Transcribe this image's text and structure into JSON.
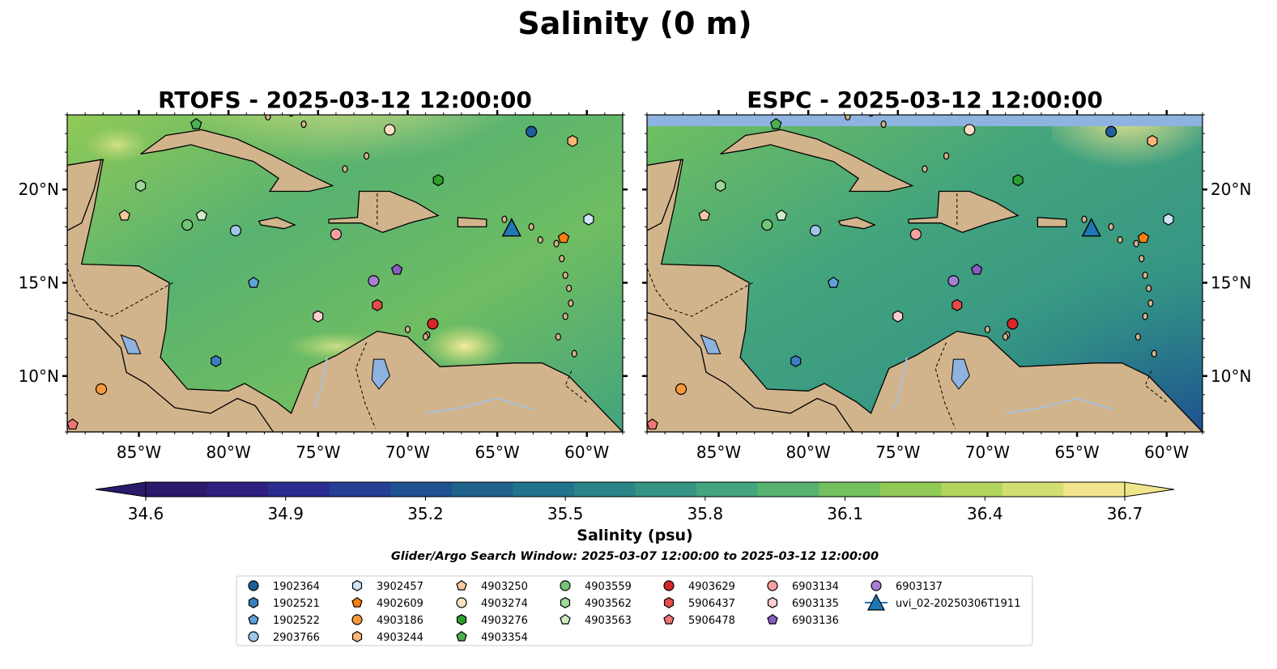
{
  "figure": {
    "title": "Salinity (0 m)",
    "search_window": "Glider/Argo Search Window: 2025-03-07 12:00:00 to 2025-03-12 12:00:00"
  },
  "chart_data": {
    "type": "heatmap",
    "panels": [
      {
        "title": "RTOFS - 2025-03-12 12:00:00",
        "ylabels_side": "left"
      },
      {
        "title": "ESPC - 2025-03-12 12:00:00",
        "ylabels_side": "right"
      }
    ],
    "xlim": [
      -89,
      -58
    ],
    "ylim": [
      7,
      24
    ],
    "xticks": [
      -85,
      -80,
      -75,
      -70,
      -65,
      -60
    ],
    "xtick_labels": [
      "85°W",
      "80°W",
      "75°W",
      "70°W",
      "65°W",
      "60°W"
    ],
    "yticks": [
      10,
      15,
      20
    ],
    "ytick_labels": [
      "10°N",
      "15°N",
      "20°N"
    ],
    "colorbar": {
      "label": "Salinity (psu)",
      "min": 34.6,
      "max": 36.7,
      "ticks": [
        34.6,
        34.9,
        35.2,
        35.5,
        35.8,
        36.1,
        36.4,
        36.7
      ],
      "tick_labels": [
        "34.6",
        "34.9",
        "35.2",
        "35.5",
        "35.8",
        "36.1",
        "36.4",
        "36.7"
      ],
      "extend": "both",
      "colors": [
        "#2b1a6b",
        "#2e1f80",
        "#2a2c8f",
        "#243f94",
        "#1f5190",
        "#1f638d",
        "#22738b",
        "#2a8488",
        "#359585",
        "#43a47d",
        "#58b270",
        "#72c05f",
        "#91ca57",
        "#b3d45d",
        "#d3de72",
        "#f0e58c"
      ]
    },
    "land_color": "#d2b48c",
    "lake_color": "#8fb3e0",
    "river_color": "#a9c0d8",
    "glider": {
      "name": "uvi_02-20250306T1911",
      "lon": -64.2,
      "lat": 17.9,
      "color": "#1f77b4",
      "marker": "triangle"
    },
    "floats": [
      {
        "id": "1902364",
        "lon": -63.1,
        "lat": 23.1,
        "color": "#1f5e9a",
        "marker": "circle"
      },
      {
        "id": "1902521",
        "lon": -80.7,
        "lat": 10.8,
        "color": "#3a7fc0",
        "marker": "hexagon"
      },
      {
        "id": "1902522",
        "lon": -78.6,
        "lat": 15.0,
        "color": "#5fa2d8",
        "marker": "pentagon"
      },
      {
        "id": "2903766",
        "lon": -79.6,
        "lat": 17.8,
        "color": "#9fc6e8",
        "marker": "circle"
      },
      {
        "id": "3902457",
        "lon": -59.9,
        "lat": 18.4,
        "color": "#cfe4f5",
        "marker": "hexagon"
      },
      {
        "id": "4902609",
        "lon": -61.3,
        "lat": 17.4,
        "color": "#ff7f0e",
        "marker": "pentagon"
      },
      {
        "id": "4903186",
        "lon": -87.1,
        "lat": 9.3,
        "color": "#f79a3c",
        "marker": "circle"
      },
      {
        "id": "4903244",
        "lon": -60.8,
        "lat": 22.6,
        "color": "#fbb677",
        "marker": "hexagon"
      },
      {
        "id": "4903250",
        "lon": -85.8,
        "lat": 18.6,
        "color": "#f7c9a0",
        "marker": "pentagon"
      },
      {
        "id": "4903274",
        "lon": -71.0,
        "lat": 23.2,
        "color": "#fde0c4",
        "marker": "circle"
      },
      {
        "id": "4903276",
        "lon": -68.3,
        "lat": 20.5,
        "color": "#2ca02c",
        "marker": "hexagon"
      },
      {
        "id": "4903354",
        "lon": -81.8,
        "lat": 23.5,
        "color": "#4caf50",
        "marker": "pentagon"
      },
      {
        "id": "4903559",
        "lon": -82.3,
        "lat": 18.1,
        "color": "#73c476",
        "marker": "circle"
      },
      {
        "id": "4903562",
        "lon": -84.9,
        "lat": 20.2,
        "color": "#9fd99a",
        "marker": "hexagon"
      },
      {
        "id": "4903563",
        "lon": -81.5,
        "lat": 18.6,
        "color": "#cdeec5",
        "marker": "pentagon"
      },
      {
        "id": "4903629",
        "lon": -68.6,
        "lat": 12.8,
        "color": "#d62728",
        "marker": "circle"
      },
      {
        "id": "5906437",
        "lon": -71.7,
        "lat": 13.8,
        "color": "#e74b4b",
        "marker": "hexagon"
      },
      {
        "id": "5906478",
        "lon": -88.7,
        "lat": 7.4,
        "color": "#f07575",
        "marker": "pentagon"
      },
      {
        "id": "6903134",
        "lon": -74.0,
        "lat": 17.6,
        "color": "#f7a0a0",
        "marker": "circle"
      },
      {
        "id": "6903135",
        "lon": -75.0,
        "lat": 13.2,
        "color": "#fcd0d0",
        "marker": "hexagon"
      },
      {
        "id": "6903136",
        "lon": -70.6,
        "lat": 15.7,
        "color": "#8a5cc2",
        "marker": "pentagon"
      },
      {
        "id": "6903137",
        "lon": -71.9,
        "lat": 15.1,
        "color": "#a57fd1",
        "marker": "circle"
      }
    ]
  }
}
